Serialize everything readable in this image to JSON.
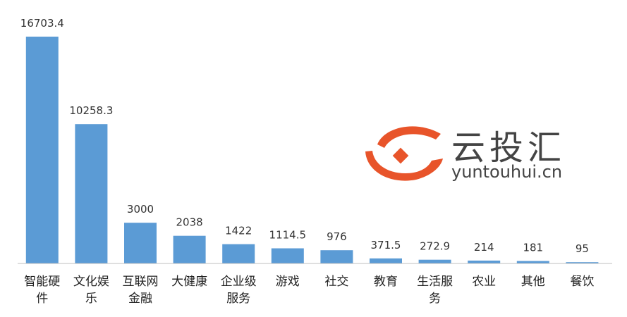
{
  "chart_data": {
    "type": "bar",
    "categories": [
      [
        "智能硬",
        "件"
      ],
      [
        "文化娱",
        "乐"
      ],
      [
        "互联网",
        "金融"
      ],
      [
        "大健康"
      ],
      [
        "企业级",
        "服务"
      ],
      [
        "游戏"
      ],
      [
        "社交"
      ],
      [
        "教育"
      ],
      [
        "生活服",
        "务"
      ],
      [
        "农业"
      ],
      [
        "其他"
      ],
      [
        "餐饮"
      ]
    ],
    "values": [
      16703.4,
      10258.3,
      3000,
      2038,
      1422,
      1114.5,
      976,
      371.5,
      272.9,
      214,
      181,
      95
    ],
    "data_labels": [
      "16703.4",
      "10258.3",
      "3000",
      "2038",
      "1422",
      "1114.5",
      "976",
      "371.5",
      "272.9",
      "214",
      "181",
      "95"
    ],
    "ylim": [
      0,
      16703.4
    ],
    "grid": false,
    "bar_color": "#5B9BD5"
  },
  "watermark": {
    "brand_name": "云投汇",
    "brand_url": "yuntouhui.cn",
    "accent_color": "#E8542A"
  }
}
